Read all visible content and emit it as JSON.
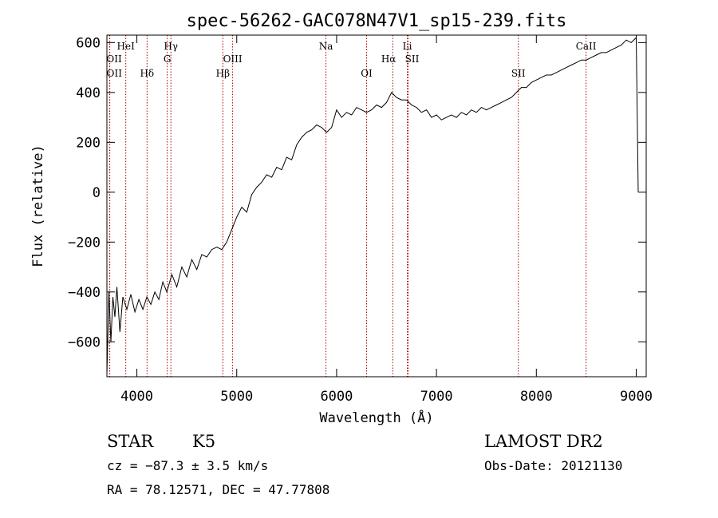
{
  "chart_data": {
    "type": "line",
    "title": "spec-56262-GAC078N47V1_sp15-239.fits",
    "xlabel": "Wavelength (Å)",
    "ylabel": "Flux (relative)",
    "xlim": [
      3700,
      9100
    ],
    "ylim": [
      -740,
      630
    ],
    "x_ticks": [
      4000,
      5000,
      6000,
      7000,
      8000,
      9000
    ],
    "x_tick_labels": [
      "4000",
      "5000",
      "6000",
      "7000",
      "8000",
      "9000"
    ],
    "y_ticks": [
      -600,
      -400,
      -200,
      0,
      200,
      400,
      600
    ],
    "y_tick_labels": [
      "−600",
      "−400",
      "−200",
      "0",
      "200",
      "400",
      "600"
    ],
    "grid": false,
    "series": [
      {
        "x": [
          3700,
          3720,
          3740,
          3760,
          3780,
          3800,
          3830,
          3860,
          3900,
          3940,
          3980,
          4020,
          4060,
          4100,
          4140,
          4180,
          4220,
          4260,
          4300,
          4350,
          4400,
          4450,
          4500,
          4550,
          4600,
          4650,
          4700,
          4750,
          4800,
          4850,
          4900,
          4950,
          5000,
          5050,
          5100,
          5150,
          5200,
          5250,
          5300,
          5350,
          5400,
          5450,
          5500,
          5550,
          5600,
          5650,
          5700,
          5750,
          5800,
          5850,
          5900,
          5950,
          6000,
          6050,
          6100,
          6150,
          6200,
          6250,
          6300,
          6350,
          6400,
          6450,
          6500,
          6550,
          6600,
          6650,
          6700,
          6750,
          6800,
          6850,
          6900,
          6950,
          7000,
          7050,
          7100,
          7150,
          7200,
          7250,
          7300,
          7350,
          7400,
          7450,
          7500,
          7550,
          7600,
          7650,
          7700,
          7750,
          7800,
          7850,
          7900,
          7950,
          8000,
          8050,
          8100,
          8150,
          8200,
          8250,
          8300,
          8350,
          8400,
          8450,
          8500,
          8550,
          8600,
          8650,
          8700,
          8750,
          8800,
          8850,
          8900,
          8950,
          9000,
          9020
        ],
        "y": [
          -730,
          -400,
          -600,
          -420,
          -500,
          -380,
          -560,
          -420,
          -470,
          -410,
          -480,
          -430,
          -470,
          -420,
          -450,
          -400,
          -430,
          -360,
          -400,
          -330,
          -380,
          -300,
          -340,
          -270,
          -310,
          -250,
          -260,
          -230,
          -220,
          -230,
          -200,
          -150,
          -100,
          -60,
          -80,
          -10,
          20,
          40,
          70,
          60,
          100,
          90,
          140,
          130,
          190,
          220,
          240,
          250,
          270,
          260,
          240,
          260,
          330,
          300,
          320,
          310,
          340,
          330,
          320,
          330,
          350,
          340,
          360,
          400,
          380,
          370,
          370,
          350,
          340,
          320,
          330,
          300,
          310,
          290,
          300,
          310,
          300,
          320,
          310,
          330,
          320,
          340,
          330,
          340,
          350,
          360,
          370,
          380,
          400,
          420,
          420,
          440,
          450,
          460,
          470,
          470,
          480,
          490,
          500,
          510,
          520,
          530,
          530,
          540,
          550,
          560,
          560,
          570,
          580,
          590,
          610,
          600,
          620,
          0
        ]
      }
    ],
    "annotations": {
      "lines": [
        {
          "label": "OII",
          "x": 3727
        },
        {
          "label": "OII",
          "x": 3729
        },
        {
          "label": "HeI",
          "x": 3889
        },
        {
          "label": "Hδ",
          "x": 4102
        },
        {
          "label": "Hγ",
          "x": 4341
        },
        {
          "label": "G",
          "x": 4304
        },
        {
          "label": "Hβ",
          "x": 4861
        },
        {
          "label": "OIII",
          "x": 4959
        },
        {
          "label": "Na",
          "x": 5893
        },
        {
          "label": "OI",
          "x": 6300
        },
        {
          "label": "Hα",
          "x": 6563
        },
        {
          "label": "SII",
          "x": 6717
        },
        {
          "label": "Li",
          "x": 6708
        },
        {
          "label": "SII",
          "x": 7820
        },
        {
          "label": "CaII",
          "x": 8498
        }
      ]
    }
  },
  "info": {
    "object_class": "STAR",
    "subclass": "K5",
    "survey": "LAMOST DR2",
    "velocity": "cz = −87.3 ± 3.5 km/s",
    "obs_date": "Obs-Date: 20121130",
    "coords": "RA =  78.12571, DEC =  47.77808"
  }
}
